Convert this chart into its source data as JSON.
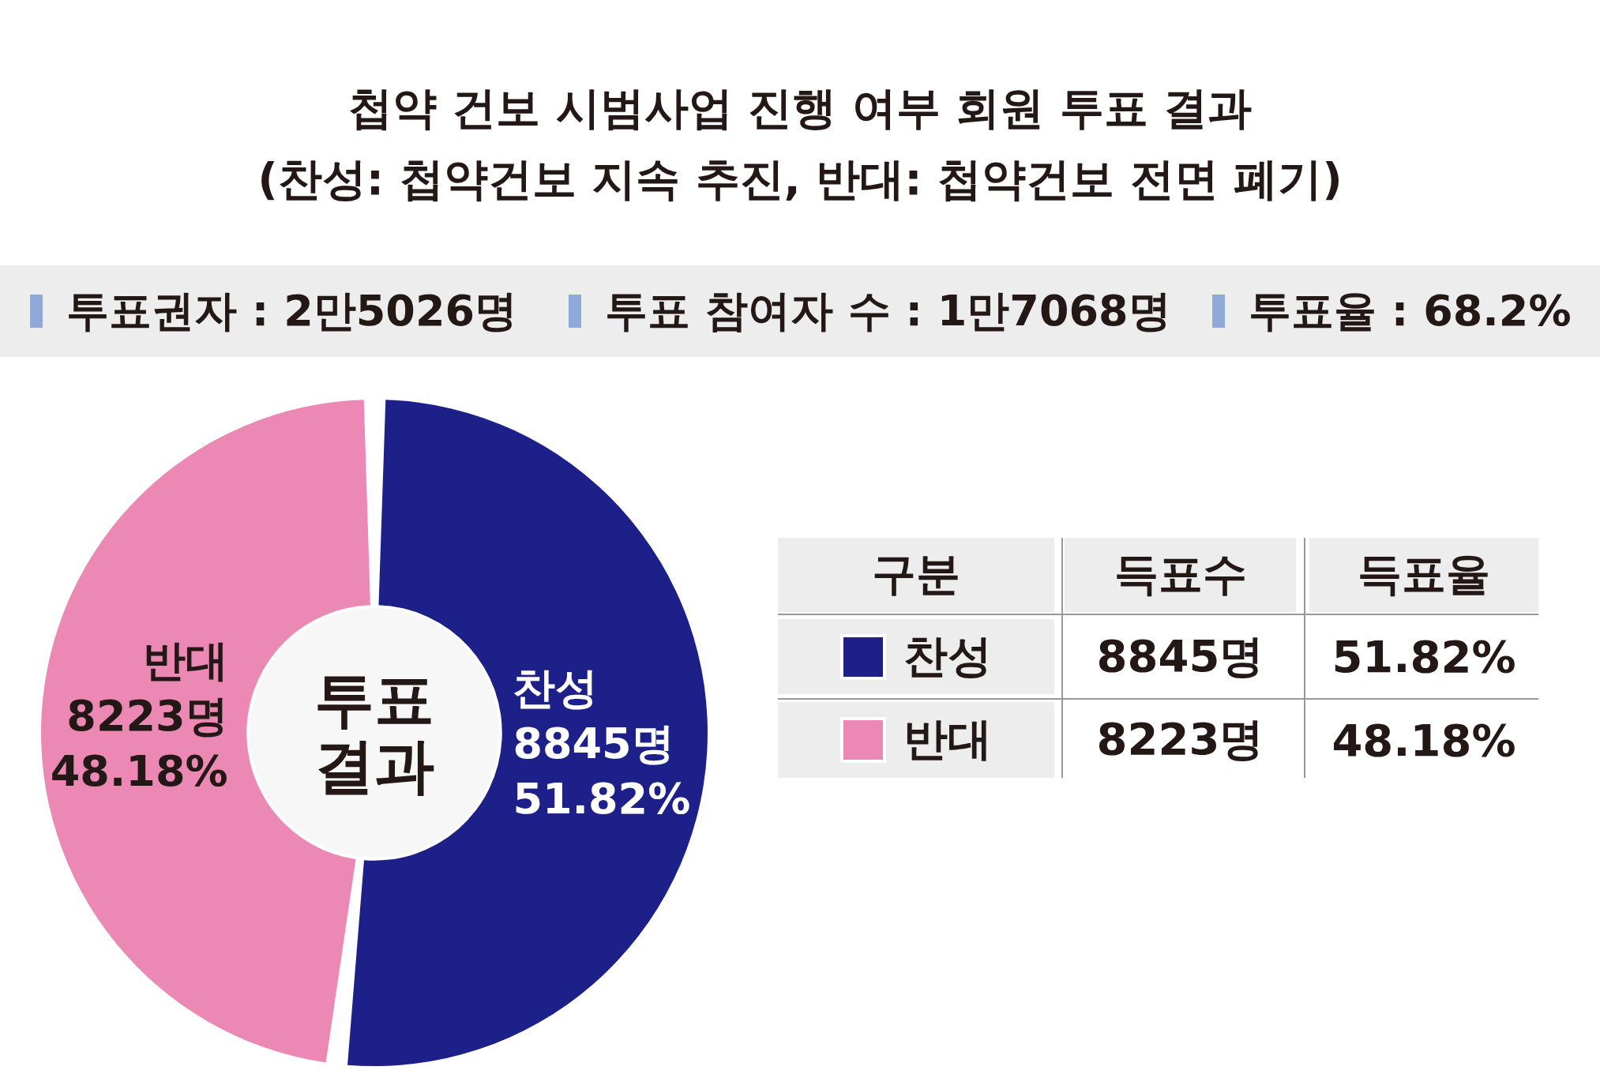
{
  "chart_data": {
    "type": "donut",
    "title": "첩약 건보 시범사업 진행 여부 회원 투표 결과",
    "subtitle": "(찬성: 첩약건보 지속 추진, 반대: 첩약건보 전면 폐기)",
    "categories": [
      "찬성",
      "반대"
    ],
    "values": [
      8845,
      8223
    ],
    "colors": [
      "#1e2089",
      "#ec88b4"
    ],
    "legend": "right",
    "value_labels": [
      "8845명\n51.82%",
      "8223명\n48.18%"
    ],
    "annotations": [
      "투표권자 : 2만5026명",
      "투표 참여자 수 : 1만7068명",
      "투표율 : 68.2%",
      "투표\n결과",
      "구분",
      "득표수",
      "득표율"
    ]
  }
}
